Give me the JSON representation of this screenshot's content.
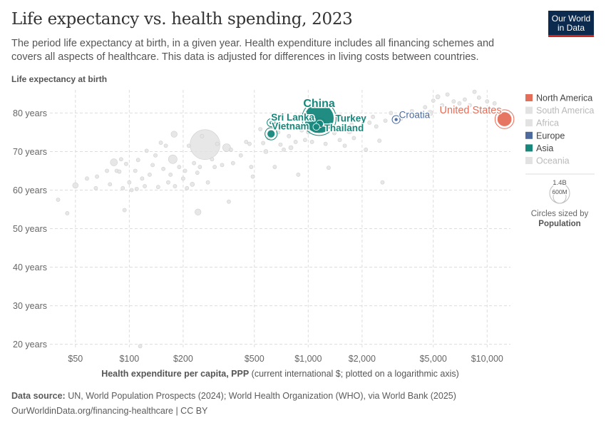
{
  "header": {
    "title": "Life expectancy vs. health spending, 2023",
    "subtitle": "The period life expectancy at birth, in a given year. Health expenditure includes all financing schemes and covers all aspects of healthcare. This data is adjusted for differences in living costs between countries.",
    "logo_line1": "Our World",
    "logo_line2": "in Data"
  },
  "footer": {
    "source_label": "Data source:",
    "source_text": "UN, World Population Prospects (2024); World Health Organization (WHO), via World Bank (2025)",
    "url_license": "OurWorldinData.org/financing-healthcare | CC BY"
  },
  "colors": {
    "North America": "#e56e5a",
    "Europe": "#4c6a9c",
    "Asia": "#15877b",
    "muted": "#e2e2e2",
    "muted_text": "#b9b9b9",
    "grid": "#dddddd"
  },
  "chart_data": {
    "type": "scatter",
    "title": "Life expectancy vs. health spending, 2023",
    "ylabel": "Life expectancy at birth",
    "xlabel_bold": "Health expenditure per capita, PPP",
    "xlabel_rest": "(current international $; plotted on a logarithmic axis)",
    "x_scale": "log",
    "xlim": [
      36,
      13500
    ],
    "ylim": [
      19,
      86
    ],
    "x_ticks": [
      {
        "value": 50,
        "label": "$50"
      },
      {
        "value": 100,
        "label": "$100"
      },
      {
        "value": 200,
        "label": "$200"
      },
      {
        "value": 500,
        "label": "$500"
      },
      {
        "value": 1000,
        "label": "$1,000"
      },
      {
        "value": 2000,
        "label": "$2,000"
      },
      {
        "value": 5000,
        "label": "$5,000"
      },
      {
        "value": 10000,
        "label": "$10,000"
      }
    ],
    "y_ticks": [
      {
        "value": 20,
        "label": "20 years"
      },
      {
        "value": 30,
        "label": "30 years"
      },
      {
        "value": 40,
        "label": "40 years"
      },
      {
        "value": 50,
        "label": "50 years"
      },
      {
        "value": 60,
        "label": "60 years"
      },
      {
        "value": 70,
        "label": "70 years"
      },
      {
        "value": 80,
        "label": "80 years"
      }
    ],
    "grid": true,
    "legend": {
      "placement": "right",
      "entries": [
        {
          "name": "North America",
          "active": true
        },
        {
          "name": "South America",
          "active": false
        },
        {
          "name": "Africa",
          "active": false
        },
        {
          "name": "Europe",
          "active": true
        },
        {
          "name": "Asia",
          "active": true
        },
        {
          "name": "Oceania",
          "active": false
        }
      ]
    },
    "size_legend": {
      "large_label": "1.4B",
      "small_label": "600M",
      "caption_line1": "Circles sized by",
      "caption_line2": "Population"
    },
    "highlighted": [
      {
        "name": "China",
        "x": 1150,
        "y": 78.6,
        "pop": 1.41,
        "region": "Asia"
      },
      {
        "name": "United States",
        "x": 12500,
        "y": 78.4,
        "pop": 0.34,
        "region": "North America"
      },
      {
        "name": "Croatia",
        "x": 3100,
        "y": 78.3,
        "pop": 0.004,
        "region": "Europe"
      },
      {
        "name": "Sri Lanka",
        "x": 620,
        "y": 77.5,
        "pop": 0.022,
        "region": "Asia"
      },
      {
        "name": "Vietnam",
        "x": 620,
        "y": 74.6,
        "pop": 0.1,
        "region": "Asia"
      },
      {
        "name": "Turkey",
        "x": 1160,
        "y": 77.2,
        "pop": 0.086,
        "region": "Asia"
      },
      {
        "name": "Thailand",
        "x": 1110,
        "y": 76.4,
        "pop": 0.072,
        "region": "Asia"
      }
    ],
    "background_points": [
      {
        "x": 40,
        "y": 57.5,
        "pop": 0.002
      },
      {
        "x": 45,
        "y": 54.0,
        "pop": 0.002
      },
      {
        "x": 50,
        "y": 61.2,
        "pop": 0.05
      },
      {
        "x": 58,
        "y": 63.0,
        "pop": 0.003
      },
      {
        "x": 65,
        "y": 60.5,
        "pop": 0.002
      },
      {
        "x": 66,
        "y": 63.5,
        "pop": 0.002
      },
      {
        "x": 75,
        "y": 65.0,
        "pop": 0.003
      },
      {
        "x": 78,
        "y": 61.5,
        "pop": 0.002
      },
      {
        "x": 82,
        "y": 67.2,
        "pop": 0.08
      },
      {
        "x": 85,
        "y": 65.0,
        "pop": 0.004
      },
      {
        "x": 88,
        "y": 64.8,
        "pop": 0.004
      },
      {
        "x": 90,
        "y": 68.0,
        "pop": 0.003
      },
      {
        "x": 92,
        "y": 60.5,
        "pop": 0.005
      },
      {
        "x": 94,
        "y": 54.8,
        "pop": 0.004
      },
      {
        "x": 96,
        "y": 66.8,
        "pop": 0.006
      },
      {
        "x": 100,
        "y": 62.0,
        "pop": 0.004
      },
      {
        "x": 103,
        "y": 60.0,
        "pop": 0.003
      },
      {
        "x": 108,
        "y": 65.0,
        "pop": 0.008
      },
      {
        "x": 110,
        "y": 60.3,
        "pop": 0.004
      },
      {
        "x": 112,
        "y": 67.8,
        "pop": 0.01
      },
      {
        "x": 115,
        "y": 19.5,
        "pop": 0.002
      },
      {
        "x": 118,
        "y": 63.0,
        "pop": 0.003
      },
      {
        "x": 122,
        "y": 61.0,
        "pop": 0.004
      },
      {
        "x": 125,
        "y": 70.2,
        "pop": 0.003
      },
      {
        "x": 130,
        "y": 64.0,
        "pop": 0.005
      },
      {
        "x": 135,
        "y": 66.5,
        "pop": 0.003
      },
      {
        "x": 140,
        "y": 69.0,
        "pop": 0.004
      },
      {
        "x": 145,
        "y": 60.8,
        "pop": 0.003
      },
      {
        "x": 150,
        "y": 72.3,
        "pop": 0.003
      },
      {
        "x": 155,
        "y": 65.5,
        "pop": 0.003
      },
      {
        "x": 160,
        "y": 71.5,
        "pop": 0.002
      },
      {
        "x": 165,
        "y": 62.0,
        "pop": 0.004
      },
      {
        "x": 170,
        "y": 64.0,
        "pop": 0.003
      },
      {
        "x": 175,
        "y": 68.0,
        "pop": 0.12
      },
      {
        "x": 178,
        "y": 74.5,
        "pop": 0.06
      },
      {
        "x": 180,
        "y": 61.0,
        "pop": 0.003
      },
      {
        "x": 190,
        "y": 66.0,
        "pop": 0.003
      },
      {
        "x": 200,
        "y": 63.0,
        "pop": 0.003
      },
      {
        "x": 205,
        "y": 65.0,
        "pop": 0.004
      },
      {
        "x": 210,
        "y": 60.5,
        "pop": 0.002
      },
      {
        "x": 215,
        "y": 71.5,
        "pop": 0.003
      },
      {
        "x": 225,
        "y": 61.5,
        "pop": 0.03
      },
      {
        "x": 230,
        "y": 67.0,
        "pop": 0.005
      },
      {
        "x": 240,
        "y": 64.5,
        "pop": 0.003
      },
      {
        "x": 242,
        "y": 54.3,
        "pop": 0.06
      },
      {
        "x": 248,
        "y": 66.0,
        "pop": 0.004
      },
      {
        "x": 255,
        "y": 74.0,
        "pop": 0.005
      },
      {
        "x": 265,
        "y": 71.8,
        "pop": 1.43
      },
      {
        "x": 275,
        "y": 62.0,
        "pop": 0.003
      },
      {
        "x": 290,
        "y": 68.0,
        "pop": 0.004
      },
      {
        "x": 300,
        "y": 66.0,
        "pop": 0.003
      },
      {
        "x": 310,
        "y": 72.0,
        "pop": 0.005
      },
      {
        "x": 330,
        "y": 66.5,
        "pop": 0.004
      },
      {
        "x": 350,
        "y": 71.0,
        "pop": 0.1
      },
      {
        "x": 360,
        "y": 57.0,
        "pop": 0.002
      },
      {
        "x": 370,
        "y": 70.5,
        "pop": 0.004
      },
      {
        "x": 380,
        "y": 67.0,
        "pop": 0.003
      },
      {
        "x": 420,
        "y": 69.0,
        "pop": 0.004
      },
      {
        "x": 450,
        "y": 72.5,
        "pop": 0.005
      },
      {
        "x": 470,
        "y": 72.0,
        "pop": 0.004
      },
      {
        "x": 480,
        "y": 66.0,
        "pop": 0.003
      },
      {
        "x": 490,
        "y": 63.5,
        "pop": 0.003
      },
      {
        "x": 540,
        "y": 75.8,
        "pop": 0.003
      },
      {
        "x": 560,
        "y": 72.2,
        "pop": 0.004
      },
      {
        "x": 580,
        "y": 70.0,
        "pop": 0.03
      },
      {
        "x": 600,
        "y": 73.5,
        "pop": 0.005
      },
      {
        "x": 650,
        "y": 66.0,
        "pop": 0.004
      },
      {
        "x": 680,
        "y": 75.0,
        "pop": 0.005
      },
      {
        "x": 700,
        "y": 71.8,
        "pop": 0.006
      },
      {
        "x": 730,
        "y": 70.5,
        "pop": 0.003
      },
      {
        "x": 780,
        "y": 74.0,
        "pop": 0.004
      },
      {
        "x": 800,
        "y": 71.0,
        "pop": 0.03
      },
      {
        "x": 850,
        "y": 72.5,
        "pop": 0.005
      },
      {
        "x": 880,
        "y": 64.0,
        "pop": 0.003
      },
      {
        "x": 920,
        "y": 75.5,
        "pop": 0.004
      },
      {
        "x": 960,
        "y": 73.0,
        "pop": 0.005
      },
      {
        "x": 1000,
        "y": 75.0,
        "pop": 0.02
      },
      {
        "x": 1050,
        "y": 72.5,
        "pop": 0.004
      },
      {
        "x": 1250,
        "y": 72.0,
        "pop": 0.003
      },
      {
        "x": 1300,
        "y": 65.8,
        "pop": 0.004
      },
      {
        "x": 1400,
        "y": 74.8,
        "pop": 0.02
      },
      {
        "x": 1500,
        "y": 73.0,
        "pop": 0.003
      },
      {
        "x": 1600,
        "y": 71.5,
        "pop": 0.004
      },
      {
        "x": 1700,
        "y": 75.3,
        "pop": 0.05
      },
      {
        "x": 1750,
        "y": 77.0,
        "pop": 0.004
      },
      {
        "x": 1800,
        "y": 73.5,
        "pop": 0.004
      },
      {
        "x": 2000,
        "y": 76.0,
        "pop": 0.005
      },
      {
        "x": 2100,
        "y": 70.5,
        "pop": 0.003
      },
      {
        "x": 2200,
        "y": 77.5,
        "pop": 0.004
      },
      {
        "x": 2300,
        "y": 79.0,
        "pop": 0.003
      },
      {
        "x": 2400,
        "y": 76.5,
        "pop": 0.006
      },
      {
        "x": 2500,
        "y": 72.8,
        "pop": 0.02
      },
      {
        "x": 2600,
        "y": 62.0,
        "pop": 0.002
      },
      {
        "x": 2700,
        "y": 78.0,
        "pop": 0.006
      },
      {
        "x": 2900,
        "y": 80.0,
        "pop": 0.004
      },
      {
        "x": 3300,
        "y": 78.5,
        "pop": 0.004
      },
      {
        "x": 3500,
        "y": 79.0,
        "pop": 0.005
      },
      {
        "x": 3800,
        "y": 80.5,
        "pop": 0.005
      },
      {
        "x": 4200,
        "y": 79.5,
        "pop": 0.006
      },
      {
        "x": 4500,
        "y": 81.5,
        "pop": 0.01
      },
      {
        "x": 4800,
        "y": 80.0,
        "pop": 0.05
      },
      {
        "x": 5000,
        "y": 83.2,
        "pop": 0.006
      },
      {
        "x": 5300,
        "y": 84.2,
        "pop": 0.03
      },
      {
        "x": 5600,
        "y": 82.0,
        "pop": 0.005
      },
      {
        "x": 6000,
        "y": 84.8,
        "pop": 0.004
      },
      {
        "x": 6500,
        "y": 83.0,
        "pop": 0.01
      },
      {
        "x": 7000,
        "y": 82.5,
        "pop": 0.01
      },
      {
        "x": 7500,
        "y": 83.5,
        "pop": 0.004
      },
      {
        "x": 8000,
        "y": 82.0,
        "pop": 0.005
      },
      {
        "x": 8500,
        "y": 85.5,
        "pop": 0.004
      },
      {
        "x": 9000,
        "y": 84.0,
        "pop": 0.003
      },
      {
        "x": 10000,
        "y": 83.0,
        "pop": 0.005
      },
      {
        "x": 11000,
        "y": 82.5,
        "pop": 0.003
      }
    ]
  }
}
